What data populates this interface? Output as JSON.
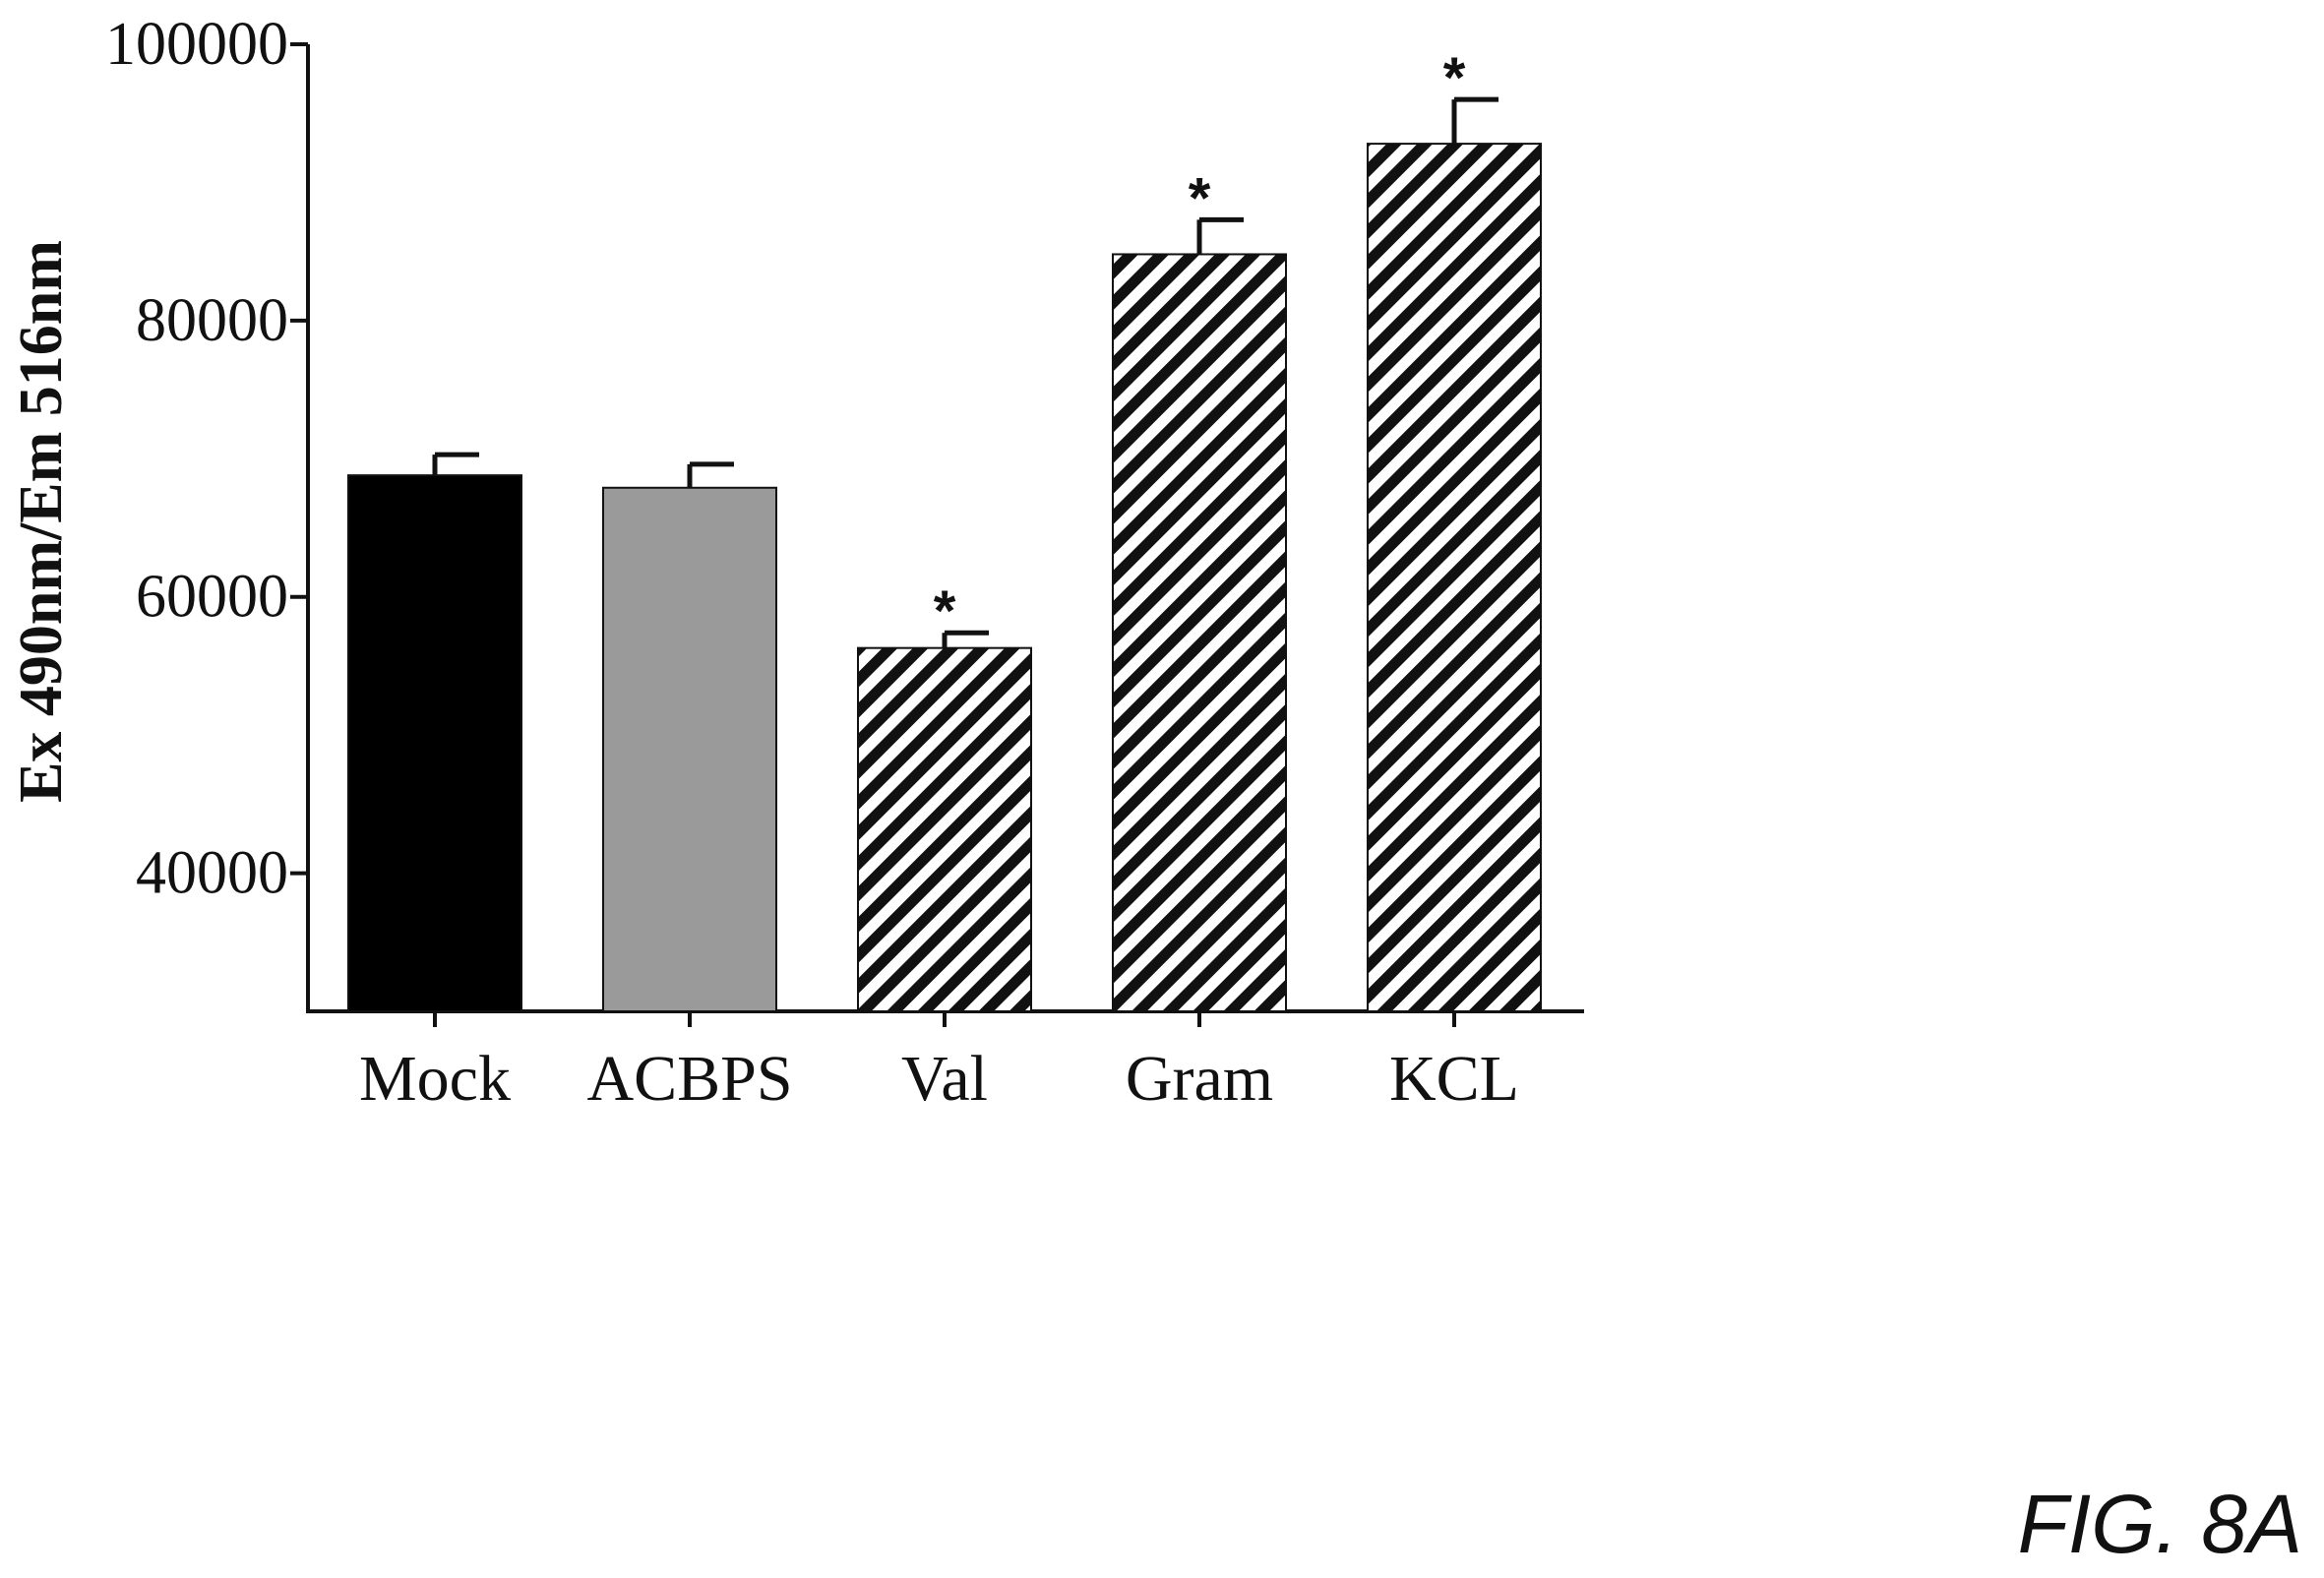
{
  "chart_data": {
    "type": "bar",
    "categories": [
      "Mock",
      "ACBPS",
      "Val",
      "Gram",
      "KCL"
    ],
    "values": [
      68800,
      67900,
      56300,
      84800,
      92800
    ],
    "errors": [
      1500,
      1700,
      1100,
      2500,
      3200
    ],
    "significance": [
      "",
      "",
      "*",
      "*",
      "*"
    ],
    "fills": [
      "solid-black",
      "solid-gray",
      "hatched",
      "hatched",
      "hatched"
    ],
    "colors": {
      "black": "#000000",
      "gray": "#9a9a9a",
      "hatch_bg": "#ffffff",
      "hatch_line": "#111111"
    },
    "ylabel": "Ex 490nm/Em 516nm",
    "xlabel": "",
    "ylim": [
      30000,
      100000
    ],
    "yticks": [
      40000,
      60000,
      80000,
      100000
    ],
    "ytick_labels": [
      "40000",
      "60000",
      "80000",
      "100000"
    ],
    "grid": false,
    "legend": "none"
  },
  "figure_label": "FIG. 8A"
}
